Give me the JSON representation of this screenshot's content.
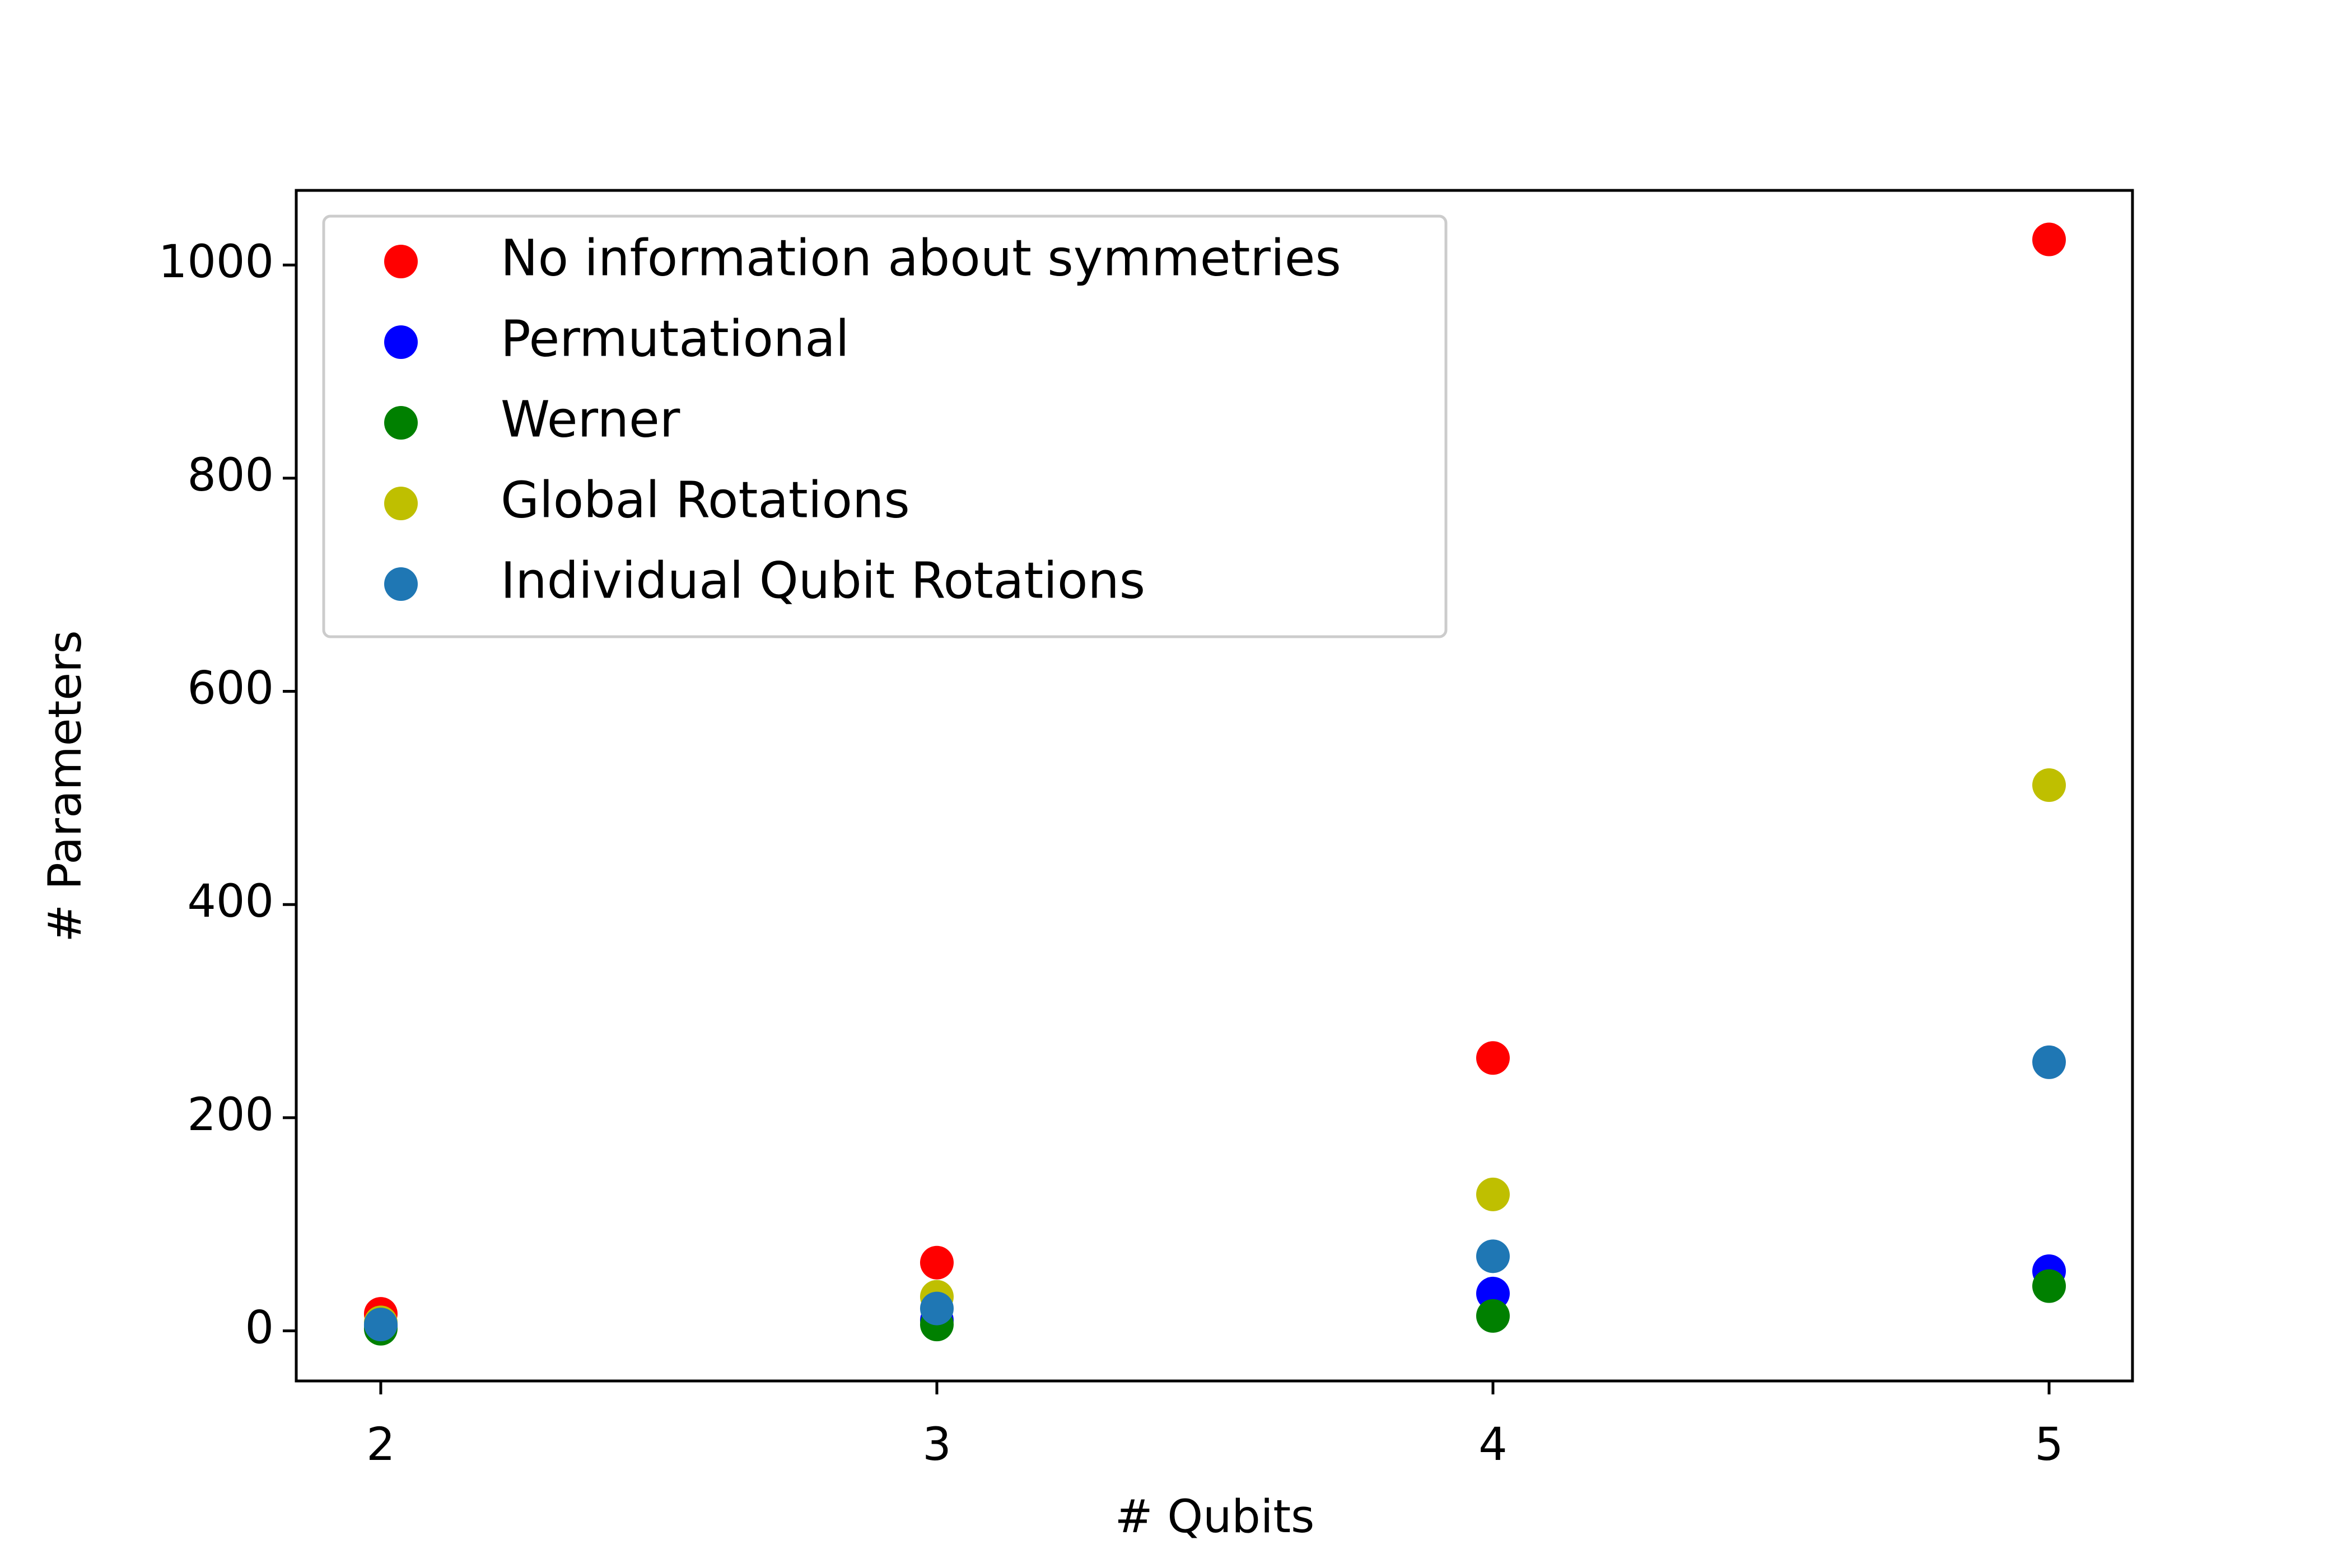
{
  "chart_data": {
    "type": "scatter",
    "xlabel": "# Qubits",
    "ylabel": "# Parameters",
    "x": [
      2,
      3,
      4,
      5
    ],
    "series": [
      {
        "name": "No information about symmetries",
        "color": "#ff0000",
        "values": [
          16,
          64,
          256,
          1024
        ]
      },
      {
        "name": "Permutational",
        "color": "#0000ff",
        "values": [
          5,
          10,
          35,
          56
        ]
      },
      {
        "name": "Werner",
        "color": "#008000",
        "values": [
          2,
          6,
          14,
          42
        ]
      },
      {
        "name": "Global Rotations",
        "color": "#bfbf00",
        "values": [
          8,
          32,
          128,
          512
        ]
      },
      {
        "name": "Individual Qubit Rotations",
        "color": "#1f77b4",
        "values": [
          6,
          21,
          70,
          252
        ]
      }
    ],
    "xlim": [
      1.848,
      5.15
    ],
    "xticks": [
      2,
      3,
      4,
      5
    ],
    "ylim": [
      -47,
      1070
    ],
    "yticks": [
      0,
      200,
      400,
      600,
      800,
      1000
    ],
    "grid": false,
    "legend": "upper left"
  }
}
